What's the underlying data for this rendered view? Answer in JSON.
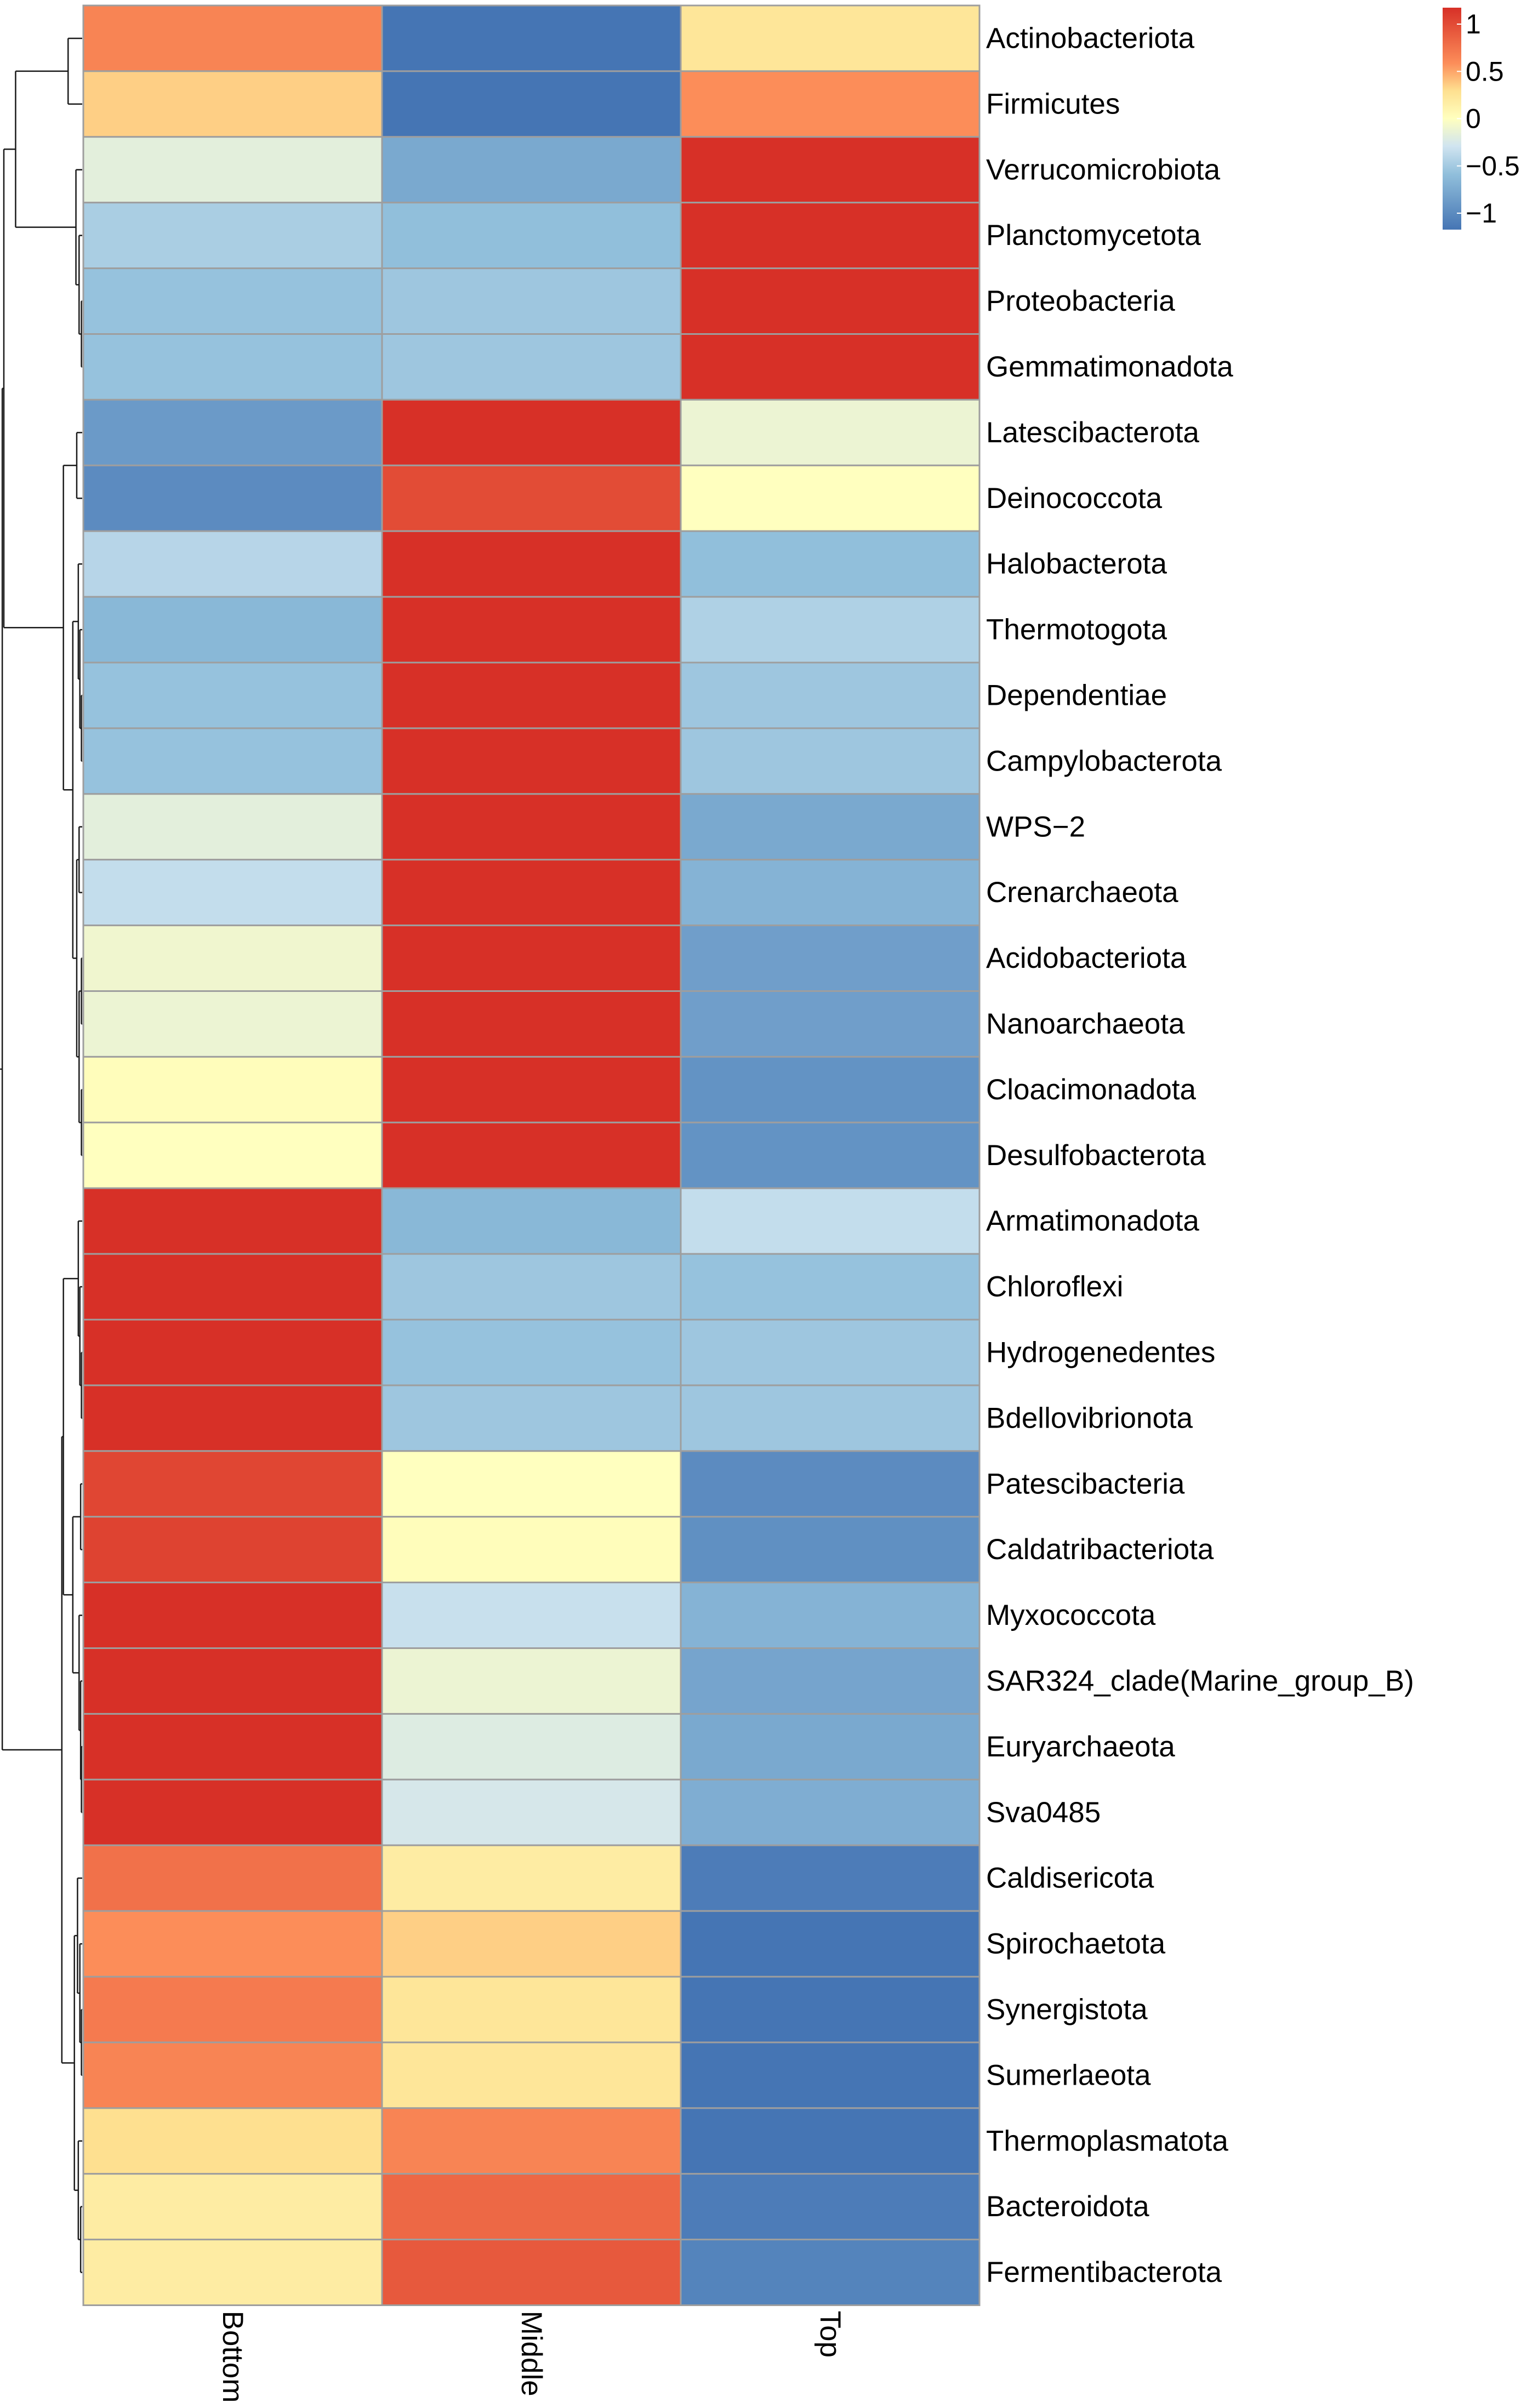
{
  "chart_data": {
    "type": "heatmap",
    "title": "",
    "columns": [
      "Bottom",
      "Middle",
      "Top"
    ],
    "rows": [
      "Actinobacteriota",
      "Firmicutes",
      "Verrucomicrobiota",
      "Planctomycetota",
      "Proteobacteria",
      "Gemmatimonadota",
      "Latescibacterota",
      "Deinococcota",
      "Halobacterota",
      "Thermotogota",
      "Dependentiae",
      "Campylobacterota",
      "WPS−2",
      "Crenarchaeota",
      "Acidobacteriota",
      "Nanoarchaeota",
      "Cloacimonadota",
      "Desulfobacterota",
      "Armatimonadota",
      "Chloroflexi",
      "Hydrogenedentes",
      "Bdellovibrionota",
      "Patescibacteria",
      "Caldatribacteriota",
      "Myxococcota",
      "SAR324_clade(Marine_group_B)",
      "Euryarchaeota",
      "Sva0485",
      "Caldisericota",
      "Spirochaetota",
      "Synergistota",
      "Sumerlaeota",
      "Thermoplasmatota",
      "Bacteroidota",
      "Fermentibacterota"
    ],
    "values": [
      [
        0.55,
        -1.05,
        0.2
      ],
      [
        0.3,
        -1.1,
        0.5
      ],
      [
        -0.15,
        -0.65,
        1.05
      ],
      [
        -0.4,
        -0.5,
        1.12
      ],
      [
        -0.48,
        -0.45,
        1.12
      ],
      [
        -0.48,
        -0.45,
        1.12
      ],
      [
        -0.75,
        1.05,
        -0.1
      ],
      [
        -0.85,
        0.85,
        0.0
      ],
      [
        -0.35,
        1.12,
        -0.5
      ],
      [
        -0.55,
        1.15,
        -0.38
      ],
      [
        -0.48,
        1.15,
        -0.45
      ],
      [
        -0.48,
        1.15,
        -0.45
      ],
      [
        -0.15,
        1.12,
        -0.65
      ],
      [
        -0.3,
        1.12,
        -0.58
      ],
      [
        -0.08,
        1.05,
        -0.72
      ],
      [
        -0.1,
        1.08,
        -0.72
      ],
      [
        0.02,
        1.0,
        -0.8
      ],
      [
        0.0,
        1.0,
        -0.8
      ],
      [
        1.1,
        -0.55,
        -0.3
      ],
      [
        1.12,
        -0.45,
        -0.48
      ],
      [
        1.12,
        -0.48,
        -0.45
      ],
      [
        1.12,
        -0.45,
        -0.45
      ],
      [
        0.88,
        0.0,
        -0.85
      ],
      [
        0.9,
        0.02,
        -0.82
      ],
      [
        1.15,
        -0.28,
        -0.58
      ],
      [
        1.05,
        -0.1,
        -0.68
      ],
      [
        1.08,
        -0.18,
        -0.65
      ],
      [
        1.1,
        -0.22,
        -0.62
      ],
      [
        0.65,
        0.15,
        -0.95
      ],
      [
        0.5,
        0.3,
        -1.05
      ],
      [
        0.6,
        0.2,
        -1.02
      ],
      [
        0.55,
        0.2,
        -1.05
      ],
      [
        0.25,
        0.55,
        -1.05
      ],
      [
        0.15,
        0.7,
        -0.95
      ],
      [
        0.15,
        0.78,
        -0.9
      ]
    ],
    "color_scale": {
      "low": "#4575b4",
      "mid": "#ffffbf",
      "high": "#d73027",
      "legend_ticks": [
        "1",
        "0.5",
        "0",
        "−0.5",
        "−1"
      ]
    },
    "row_dendrogram": true,
    "grid": true,
    "legend_placement": "top-right"
  }
}
